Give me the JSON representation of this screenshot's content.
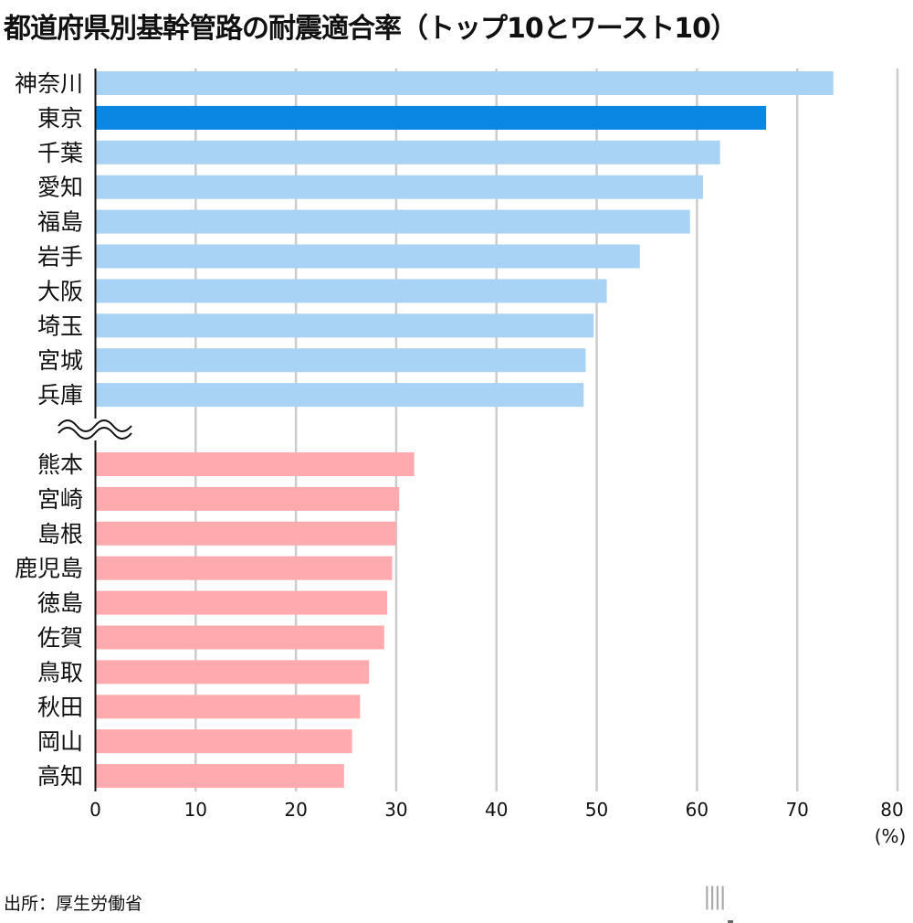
{
  "title": "都道府県別基幹管路の耐震適合率（トップ10とワースト10）",
  "source": "出所：厚生労働省",
  "logo": {
    "main": "nippon",
    "dot": ".",
    "suffix": "com"
  },
  "colors": {
    "top": "#a8d3f5",
    "highlight": "#0a86e3",
    "worst": "#ffaaae",
    "grid": "#cccccc",
    "axis": "#111111"
  },
  "chart_data": {
    "type": "bar",
    "orientation": "horizontal",
    "title": "都道府県別基幹管路の耐震適合率（トップ10とワースト10）",
    "xlabel": "(%)",
    "xlim": [
      0,
      80
    ],
    "xticks": [
      0,
      10,
      20,
      30,
      40,
      50,
      60,
      70,
      80
    ],
    "grid": true,
    "axis_break": "between top 10 and worst 10",
    "groups": [
      {
        "group": "top10",
        "categories": [
          "神奈川",
          "東京",
          "千葉",
          "愛知",
          "福島",
          "岩手",
          "大阪",
          "埼玉",
          "宮城",
          "兵庫"
        ],
        "values": [
          73.6,
          66.9,
          62.3,
          60.6,
          59.3,
          54.3,
          51.0,
          49.7,
          48.9,
          48.7
        ],
        "highlight": "東京"
      },
      {
        "group": "worst10",
        "categories": [
          "熊本",
          "宮崎",
          "島根",
          "鹿児島",
          "徳島",
          "佐賀",
          "鳥取",
          "秋田",
          "岡山",
          "高知"
        ],
        "values": [
          31.8,
          30.3,
          30.0,
          29.6,
          29.1,
          28.8,
          27.3,
          26.4,
          25.6,
          24.8
        ]
      }
    ]
  }
}
